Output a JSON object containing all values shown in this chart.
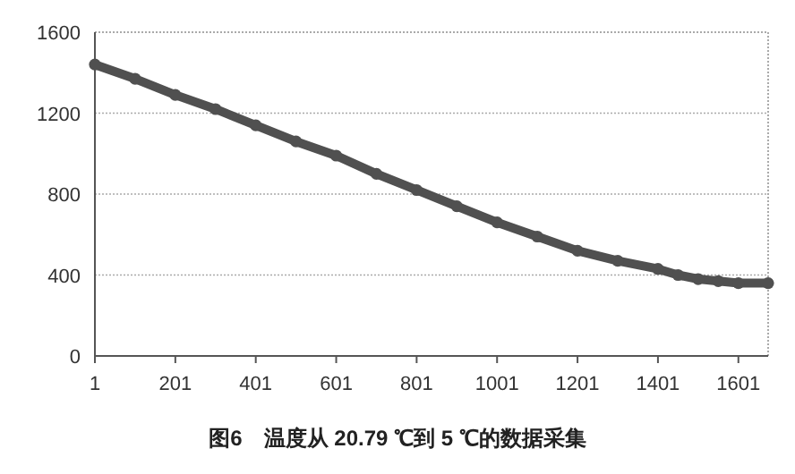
{
  "chart_data": {
    "type": "line",
    "title": "图6　温度从 20.79 ℃到 5 ℃的数据采集",
    "x": [
      1,
      101,
      201,
      301,
      401,
      501,
      601,
      701,
      801,
      901,
      1001,
      1101,
      1201,
      1301,
      1401,
      1451,
      1501,
      1551,
      1601,
      1675
    ],
    "series": [
      {
        "color": "#505050",
        "values": [
          1440,
          1370,
          1290,
          1220,
          1140,
          1060,
          990,
          900,
          820,
          740,
          660,
          590,
          520,
          470,
          430,
          400,
          380,
          370,
          360,
          360
        ]
      }
    ],
    "xlim": [
      1,
      1675
    ],
    "xticks": [
      1,
      201,
      401,
      601,
      801,
      1001,
      1201,
      1401,
      1601
    ],
    "ylim": [
      0,
      1600
    ],
    "yticks": [
      0,
      400,
      800,
      1200,
      1600
    ],
    "grid": "y",
    "marker": "circle",
    "line_style": "solid"
  }
}
